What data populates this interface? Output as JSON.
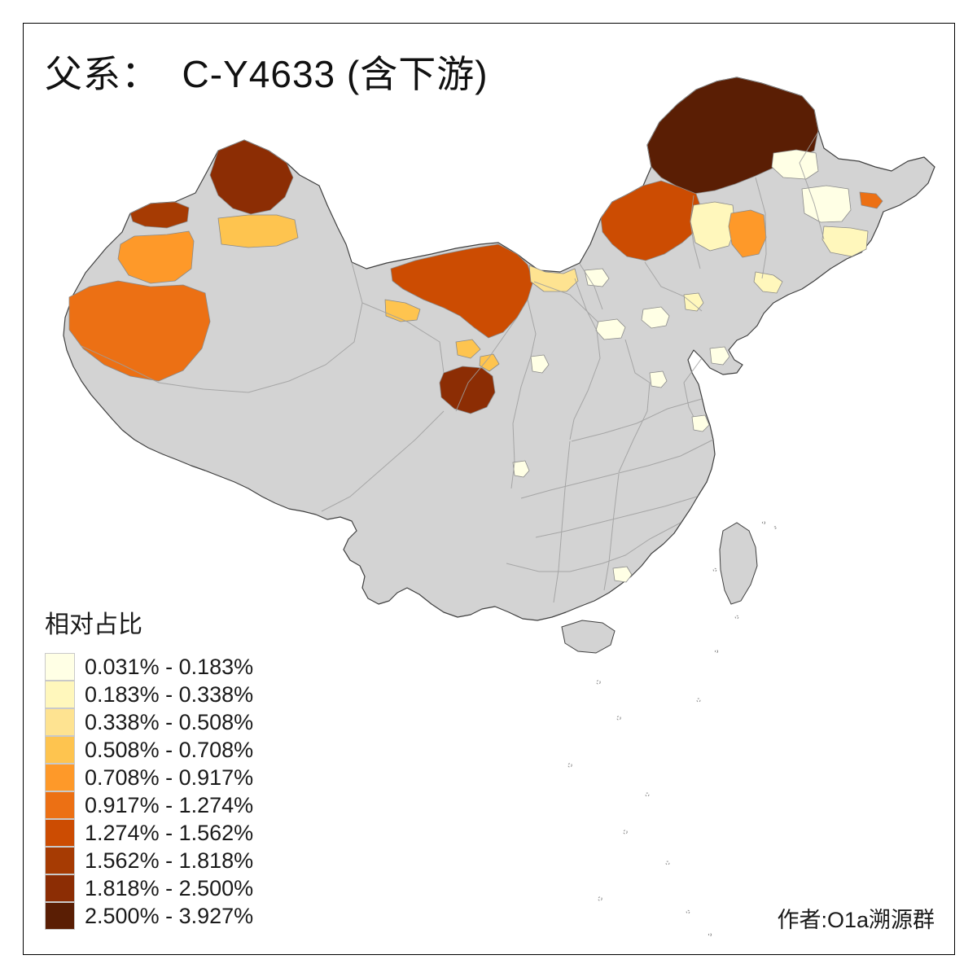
{
  "title": "父系：  C-Y4633 (含下游)",
  "legend": {
    "title": "相对占比",
    "items": [
      {
        "label": "0.031% - 0.183%",
        "color": "#FFFFE5"
      },
      {
        "label": "0.183% - 0.338%",
        "color": "#FFF7BC"
      },
      {
        "label": "0.338% - 0.508%",
        "color": "#FEE391"
      },
      {
        "label": "0.508% - 0.708%",
        "color": "#FEC44F"
      },
      {
        "label": "0.708% - 0.917%",
        "color": "#FE9929"
      },
      {
        "label": "0.917% - 1.274%",
        "color": "#EC7014"
      },
      {
        "label": "1.274% - 1.562%",
        "color": "#CC4C02"
      },
      {
        "label": "1.562% - 1.818%",
        "color": "#A63B03"
      },
      {
        "label": "1.818% - 2.500%",
        "color": "#8C2D04"
      },
      {
        "label": "2.500% - 3.927%",
        "color": "#5A1E04"
      }
    ]
  },
  "map": {
    "no_data_color": "#D3D3D3",
    "outline_color": "#3F3F3F",
    "inner_border_color": "#9E9E9E"
  },
  "credit": "作者:O1a溯源群"
}
